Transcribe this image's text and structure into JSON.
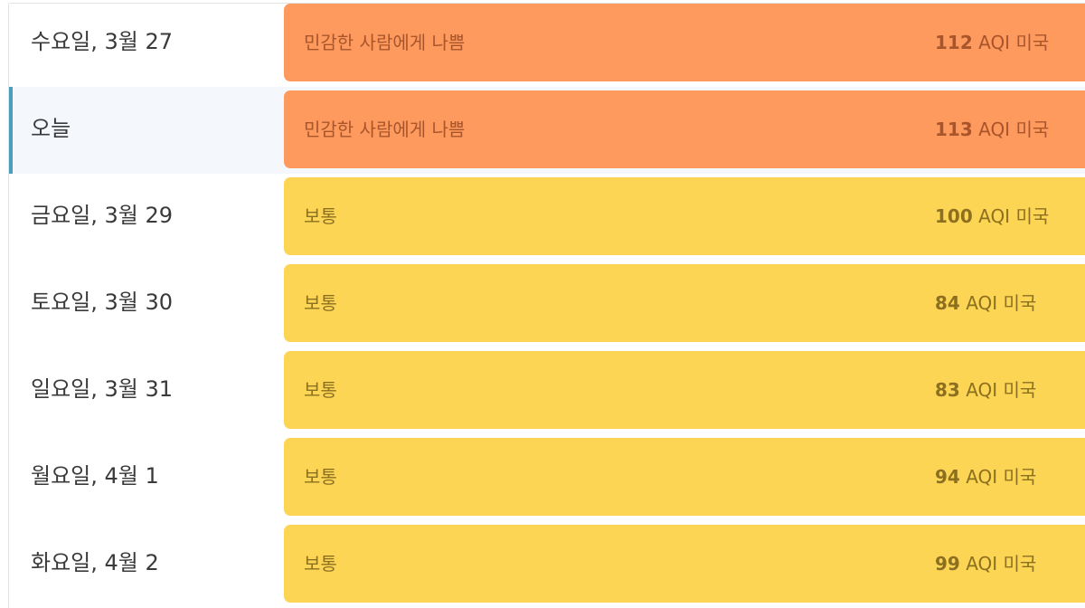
{
  "colors": {
    "unhealthy_sensitive": "#fe9a5d",
    "moderate": "#fcd555",
    "unhealthy_sensitive_text": "#a9552c",
    "moderate_text": "#8c7020",
    "today_accent": "#4a9fbd"
  },
  "rows": [
    {
      "day": "수요일, 3월 27",
      "category": "민감한 사람에게 나쁨",
      "aqi": "112",
      "unit": "AQI 미국",
      "level": "unhealthy_sensitive",
      "today": false
    },
    {
      "day": "오늘",
      "category": "민감한 사람에게 나쁨",
      "aqi": "113",
      "unit": "AQI 미국",
      "level": "unhealthy_sensitive",
      "today": true
    },
    {
      "day": "금요일, 3월 29",
      "category": "보통",
      "aqi": "100",
      "unit": "AQI 미국",
      "level": "moderate",
      "today": false
    },
    {
      "day": "토요일, 3월 30",
      "category": "보통",
      "aqi": "84",
      "unit": "AQI 미국",
      "level": "moderate",
      "today": false
    },
    {
      "day": "일요일, 3월 31",
      "category": "보통",
      "aqi": "83",
      "unit": "AQI 미국",
      "level": "moderate",
      "today": false
    },
    {
      "day": "월요일, 4월 1",
      "category": "보통",
      "aqi": "94",
      "unit": "AQI 미국",
      "level": "moderate",
      "today": false
    },
    {
      "day": "화요일, 4월 2",
      "category": "보통",
      "aqi": "99",
      "unit": "AQI 미국",
      "level": "moderate",
      "today": false
    }
  ]
}
